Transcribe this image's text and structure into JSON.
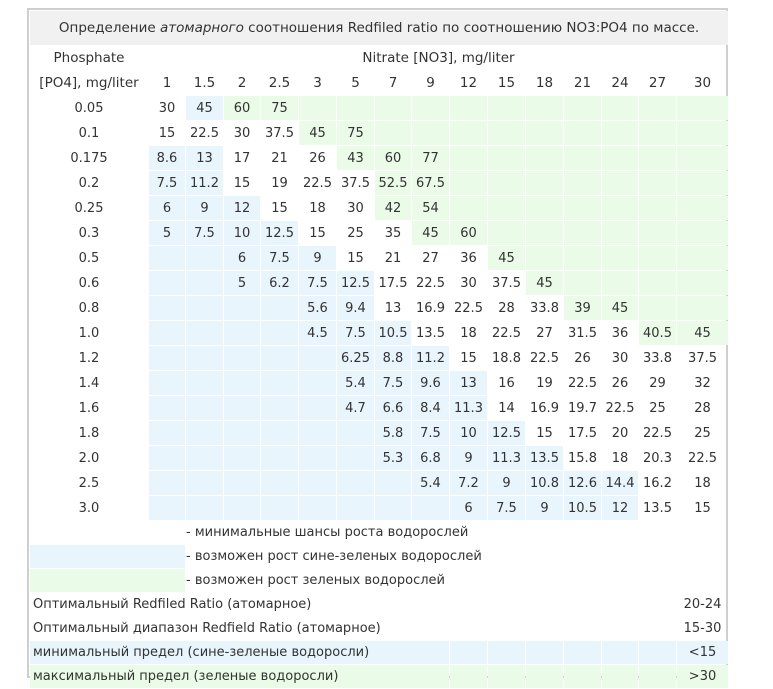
{
  "caption": {
    "before": "Определение ",
    "italic": "атомарного",
    "after": " соотношения Redfiled ratio по соотношению NO3:PO4 по массе."
  },
  "phosphate_header": [
    "Phosphate",
    "[PO4], mg/liter"
  ],
  "nitrate_header": "Nitrate [NO3], mg/liter",
  "nitrate_values": [
    "1",
    "1.5",
    "2",
    "2.5",
    "3",
    "5",
    "7",
    "9",
    "12",
    "15",
    "18",
    "21",
    "24",
    "27",
    "30"
  ],
  "rows": [
    {
      "po4": "0.05",
      "cells": [
        [
          "30",
          ""
        ],
        [
          "45",
          "b"
        ],
        [
          "60",
          "g"
        ],
        [
          "75",
          "g"
        ],
        [
          "",
          "g"
        ],
        [
          "",
          "g"
        ],
        [
          "",
          "g"
        ],
        [
          "",
          "g"
        ],
        [
          "",
          "g"
        ],
        [
          "",
          "g"
        ],
        [
          "",
          "g"
        ],
        [
          "",
          "g"
        ],
        [
          "",
          "g"
        ],
        [
          "",
          "g"
        ],
        [
          "",
          "g"
        ]
      ]
    },
    {
      "po4": "0.1",
      "cells": [
        [
          "15",
          ""
        ],
        [
          "22.5",
          ""
        ],
        [
          "30",
          ""
        ],
        [
          "37.5",
          ""
        ],
        [
          "45",
          "g"
        ],
        [
          "75",
          "g"
        ],
        [
          "",
          "g"
        ],
        [
          "",
          "g"
        ],
        [
          "",
          "g"
        ],
        [
          "",
          "g"
        ],
        [
          "",
          "g"
        ],
        [
          "",
          "g"
        ],
        [
          "",
          "g"
        ],
        [
          "",
          "g"
        ],
        [
          "",
          "g"
        ]
      ]
    },
    {
      "po4": "0.175",
      "cells": [
        [
          "8.6",
          "b"
        ],
        [
          "13",
          "b"
        ],
        [
          "17",
          ""
        ],
        [
          "21",
          ""
        ],
        [
          "26",
          ""
        ],
        [
          "43",
          "g"
        ],
        [
          "60",
          "g"
        ],
        [
          "77",
          "g"
        ],
        [
          "",
          "g"
        ],
        [
          "",
          "g"
        ],
        [
          "",
          "g"
        ],
        [
          "",
          "g"
        ],
        [
          "",
          "g"
        ],
        [
          "",
          "g"
        ],
        [
          "",
          "g"
        ]
      ]
    },
    {
      "po4": "0.2",
      "cells": [
        [
          "7.5",
          "b"
        ],
        [
          "11.2",
          "b"
        ],
        [
          "15",
          ""
        ],
        [
          "19",
          ""
        ],
        [
          "22.5",
          ""
        ],
        [
          "37.5",
          ""
        ],
        [
          "52.5",
          "g"
        ],
        [
          "67.5",
          "g"
        ],
        [
          "",
          "g"
        ],
        [
          "",
          "g"
        ],
        [
          "",
          "g"
        ],
        [
          "",
          "g"
        ],
        [
          "",
          "g"
        ],
        [
          "",
          "g"
        ],
        [
          "",
          "g"
        ]
      ]
    },
    {
      "po4": "0.25",
      "cells": [
        [
          "6",
          "b"
        ],
        [
          "9",
          "b"
        ],
        [
          "12",
          "b"
        ],
        [
          "15",
          ""
        ],
        [
          "18",
          ""
        ],
        [
          "30",
          ""
        ],
        [
          "42",
          "g"
        ],
        [
          "54",
          "g"
        ],
        [
          "",
          "g"
        ],
        [
          "",
          "g"
        ],
        [
          "",
          "g"
        ],
        [
          "",
          "g"
        ],
        [
          "",
          "g"
        ],
        [
          "",
          "g"
        ],
        [
          "",
          "g"
        ]
      ]
    },
    {
      "po4": "0.3",
      "cells": [
        [
          "5",
          "b"
        ],
        [
          "7.5",
          "b"
        ],
        [
          "10",
          "b"
        ],
        [
          "12.5",
          "b"
        ],
        [
          "15",
          ""
        ],
        [
          "25",
          ""
        ],
        [
          "35",
          ""
        ],
        [
          "45",
          "g"
        ],
        [
          "60",
          "g"
        ],
        [
          "",
          "g"
        ],
        [
          "",
          "g"
        ],
        [
          "",
          "g"
        ],
        [
          "",
          "g"
        ],
        [
          "",
          "g"
        ],
        [
          "",
          "g"
        ]
      ]
    },
    {
      "po4": "0.5",
      "cells": [
        [
          "",
          "b"
        ],
        [
          "",
          "b"
        ],
        [
          "6",
          "b"
        ],
        [
          "7.5",
          "b"
        ],
        [
          "9",
          "b"
        ],
        [
          "15",
          ""
        ],
        [
          "21",
          ""
        ],
        [
          "27",
          ""
        ],
        [
          "36",
          ""
        ],
        [
          "45",
          "g"
        ],
        [
          "",
          "g"
        ],
        [
          "",
          "g"
        ],
        [
          "",
          "g"
        ],
        [
          "",
          "g"
        ],
        [
          "",
          "g"
        ]
      ]
    },
    {
      "po4": "0.6",
      "cells": [
        [
          "",
          "b"
        ],
        [
          "",
          "b"
        ],
        [
          "5",
          "b"
        ],
        [
          "6.2",
          "b"
        ],
        [
          "7.5",
          "b"
        ],
        [
          "12.5",
          "b"
        ],
        [
          "17.5",
          ""
        ],
        [
          "22.5",
          ""
        ],
        [
          "30",
          ""
        ],
        [
          "37.5",
          ""
        ],
        [
          "45",
          "g"
        ],
        [
          "",
          "g"
        ],
        [
          "",
          "g"
        ],
        [
          "",
          "g"
        ],
        [
          "",
          "g"
        ]
      ]
    },
    {
      "po4": "0.8",
      "cells": [
        [
          "",
          "b"
        ],
        [
          "",
          "b"
        ],
        [
          "",
          "b"
        ],
        [
          "",
          "b"
        ],
        [
          "5.6",
          "b"
        ],
        [
          "9.4",
          "b"
        ],
        [
          "13",
          ""
        ],
        [
          "16.9",
          ""
        ],
        [
          "22.5",
          ""
        ],
        [
          "28",
          ""
        ],
        [
          "33.8",
          ""
        ],
        [
          "39",
          "g"
        ],
        [
          "45",
          "g"
        ],
        [
          "",
          "g"
        ],
        [
          "",
          "g"
        ]
      ]
    },
    {
      "po4": "1.0",
      "cells": [
        [
          "",
          "b"
        ],
        [
          "",
          "b"
        ],
        [
          "",
          "b"
        ],
        [
          "",
          "b"
        ],
        [
          "4.5",
          "b"
        ],
        [
          "7.5",
          "b"
        ],
        [
          "10.5",
          "b"
        ],
        [
          "13.5",
          ""
        ],
        [
          "18",
          ""
        ],
        [
          "22.5",
          ""
        ],
        [
          "27",
          ""
        ],
        [
          "31.5",
          ""
        ],
        [
          "36",
          ""
        ],
        [
          "40.5",
          "g"
        ],
        [
          "45",
          "g"
        ]
      ]
    },
    {
      "po4": "1.2",
      "cells": [
        [
          "",
          "b"
        ],
        [
          "",
          "b"
        ],
        [
          "",
          "b"
        ],
        [
          "",
          "b"
        ],
        [
          "",
          "b"
        ],
        [
          "6.25",
          "b"
        ],
        [
          "8.8",
          "b"
        ],
        [
          "11.2",
          "b"
        ],
        [
          "15",
          ""
        ],
        [
          "18.8",
          ""
        ],
        [
          "22.5",
          ""
        ],
        [
          "26",
          ""
        ],
        [
          "30",
          ""
        ],
        [
          "33.8",
          ""
        ],
        [
          "37.5",
          ""
        ]
      ]
    },
    {
      "po4": "1.4",
      "cells": [
        [
          "",
          "b"
        ],
        [
          "",
          "b"
        ],
        [
          "",
          "b"
        ],
        [
          "",
          "b"
        ],
        [
          "",
          "b"
        ],
        [
          "5.4",
          "b"
        ],
        [
          "7.5",
          "b"
        ],
        [
          "9.6",
          "b"
        ],
        [
          "13",
          "b"
        ],
        [
          "16",
          ""
        ],
        [
          "19",
          ""
        ],
        [
          "22.5",
          ""
        ],
        [
          "26",
          ""
        ],
        [
          "29",
          ""
        ],
        [
          "32",
          ""
        ]
      ]
    },
    {
      "po4": "1.6",
      "cells": [
        [
          "",
          "b"
        ],
        [
          "",
          "b"
        ],
        [
          "",
          "b"
        ],
        [
          "",
          "b"
        ],
        [
          "",
          "b"
        ],
        [
          "4.7",
          "b"
        ],
        [
          "6.6",
          "b"
        ],
        [
          "8.4",
          "b"
        ],
        [
          "11.3",
          "b"
        ],
        [
          "14",
          ""
        ],
        [
          "16.9",
          ""
        ],
        [
          "19.7",
          ""
        ],
        [
          "22.5",
          ""
        ],
        [
          "25",
          ""
        ],
        [
          "28",
          ""
        ]
      ]
    },
    {
      "po4": "1.8",
      "cells": [
        [
          "",
          "b"
        ],
        [
          "",
          "b"
        ],
        [
          "",
          "b"
        ],
        [
          "",
          "b"
        ],
        [
          "",
          "b"
        ],
        [
          "",
          "b"
        ],
        [
          "5.8",
          "b"
        ],
        [
          "7.5",
          "b"
        ],
        [
          "10",
          "b"
        ],
        [
          "12.5",
          "b"
        ],
        [
          "15",
          ""
        ],
        [
          "17.5",
          ""
        ],
        [
          "20",
          ""
        ],
        [
          "22.5",
          ""
        ],
        [
          "25",
          ""
        ]
      ]
    },
    {
      "po4": "2.0",
      "cells": [
        [
          "",
          "b"
        ],
        [
          "",
          "b"
        ],
        [
          "",
          "b"
        ],
        [
          "",
          "b"
        ],
        [
          "",
          "b"
        ],
        [
          "",
          "b"
        ],
        [
          "5.3",
          "b"
        ],
        [
          "6.8",
          "b"
        ],
        [
          "9",
          "b"
        ],
        [
          "11.3",
          "b"
        ],
        [
          "13.5",
          "b"
        ],
        [
          "15.8",
          ""
        ],
        [
          "18",
          ""
        ],
        [
          "20.3",
          ""
        ],
        [
          "22.5",
          ""
        ]
      ]
    },
    {
      "po4": "2.5",
      "cells": [
        [
          "",
          "b"
        ],
        [
          "",
          "b"
        ],
        [
          "",
          "b"
        ],
        [
          "",
          "b"
        ],
        [
          "",
          "b"
        ],
        [
          "",
          "b"
        ],
        [
          "",
          "b"
        ],
        [
          "5.4",
          "b"
        ],
        [
          "7.2",
          "b"
        ],
        [
          "9",
          "b"
        ],
        [
          "10.8",
          "b"
        ],
        [
          "12.6",
          "b"
        ],
        [
          "14.4",
          "b"
        ],
        [
          "16.2",
          ""
        ],
        [
          "18",
          ""
        ]
      ]
    },
    {
      "po4": "3.0",
      "cells": [
        [
          "",
          "b"
        ],
        [
          "",
          "b"
        ],
        [
          "",
          "b"
        ],
        [
          "",
          "b"
        ],
        [
          "",
          "b"
        ],
        [
          "",
          "b"
        ],
        [
          "",
          "b"
        ],
        [
          "",
          "b"
        ],
        [
          "6",
          "b"
        ],
        [
          "7.5",
          "b"
        ],
        [
          "9",
          "b"
        ],
        [
          "10.5",
          "b"
        ],
        [
          "12",
          "b"
        ],
        [
          "13.5",
          ""
        ],
        [
          "15",
          ""
        ]
      ]
    }
  ],
  "legend": [
    {
      "class": "",
      "text": "- минимальные шансы роста водорослей"
    },
    {
      "class": "b",
      "text": "- возможен рост сине-зеленых водорослей"
    },
    {
      "class": "g",
      "text": "- возможен рост зеленых водорослей"
    }
  ],
  "summary": [
    {
      "class": "",
      "label": "Оптимальный Redfiled Ratio (атомарное)",
      "value": "20-24"
    },
    {
      "class": "",
      "label": "Оптимальный диапазон Redfield Ratio (атомарное)",
      "value": "15-30"
    },
    {
      "class": "b",
      "label": "минимальный предел (сине-зеленые водоросли)",
      "value": "<15"
    },
    {
      "class": "g",
      "label": "максимальный предел (зеленые водоросли)",
      "value": ">30"
    }
  ],
  "colors": {
    "blue_zone": "#e8f5fd",
    "green_zone": "#eafbe8",
    "caption_bg": "#f1f1f1"
  }
}
